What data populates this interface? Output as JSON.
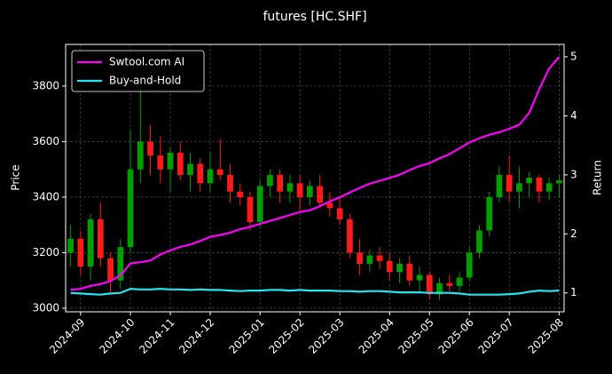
{
  "chart_data": {
    "type": "candlestick",
    "title": "futures [HC.SHF]",
    "ylabel": "Price",
    "y2label": "Return",
    "categories": [
      null,
      "2024-09",
      null,
      null,
      null,
      null,
      "2024-10",
      null,
      null,
      null,
      "2024-11",
      null,
      null,
      null,
      "2024-12",
      null,
      null,
      null,
      null,
      "2025-01",
      null,
      null,
      null,
      "2025-02",
      null,
      null,
      null,
      "2025-03",
      null,
      null,
      null,
      null,
      "2025-04",
      null,
      null,
      null,
      "2025-05",
      null,
      null,
      null,
      "2025-06",
      null,
      null,
      null,
      "2025-07",
      null,
      null,
      null,
      null,
      "2025-08"
    ],
    "open": [
      3200,
      3250,
      3150,
      3320,
      3180,
      3100,
      3220,
      3500,
      3600,
      3550,
      3500,
      3560,
      3480,
      3520,
      3450,
      3500,
      3480,
      3420,
      3400,
      3310,
      3440,
      3480,
      3420,
      3450,
      3400,
      3440,
      3380,
      3360,
      3320,
      3200,
      3160,
      3190,
      3170,
      3130,
      3160,
      3100,
      3120,
      3050,
      3090,
      3080,
      3110,
      3200,
      3280,
      3400,
      3480,
      3420,
      3450,
      3470,
      3420,
      3450
    ],
    "high": [
      3300,
      3280,
      3340,
      3380,
      3200,
      3250,
      3640,
      3800,
      3660,
      3620,
      3580,
      3600,
      3560,
      3540,
      3560,
      3610,
      3520,
      3450,
      3420,
      3460,
      3500,
      3500,
      3480,
      3480,
      3460,
      3480,
      3420,
      3400,
      3340,
      3250,
      3210,
      3220,
      3200,
      3180,
      3190,
      3150,
      3130,
      3110,
      3120,
      3130,
      3220,
      3300,
      3420,
      3510,
      3550,
      3510,
      3490,
      3480,
      3470,
      3480
    ],
    "low": [
      3150,
      3120,
      3100,
      3150,
      3050,
      3070,
      3200,
      3450,
      3480,
      3450,
      3420,
      3460,
      3420,
      3420,
      3420,
      3460,
      3380,
      3370,
      3280,
      3290,
      3400,
      3380,
      3380,
      3350,
      3370,
      3360,
      3330,
      3300,
      3180,
      3120,
      3130,
      3140,
      3100,
      3090,
      3080,
      3060,
      3030,
      3030,
      3060,
      3060,
      3100,
      3180,
      3260,
      3380,
      3380,
      3360,
      3400,
      3380,
      3390,
      3400
    ],
    "close": [
      3250,
      3150,
      3320,
      3180,
      3100,
      3220,
      3500,
      3600,
      3550,
      3500,
      3560,
      3480,
      3520,
      3450,
      3500,
      3480,
      3420,
      3400,
      3310,
      3440,
      3480,
      3420,
      3450,
      3400,
      3440,
      3380,
      3360,
      3320,
      3200,
      3160,
      3190,
      3170,
      3130,
      3160,
      3100,
      3120,
      3050,
      3090,
      3080,
      3110,
      3200,
      3280,
      3400,
      3480,
      3420,
      3450,
      3470,
      3420,
      3450,
      3460
    ],
    "up_color": "#00a000",
    "down_color": "#ff1a1a",
    "series": [
      {
        "name": "Swtool.com AI",
        "color": "#ff00ff",
        "axis": "y2",
        "values": [
          1.05,
          1.07,
          1.12,
          1.15,
          1.2,
          1.3,
          1.5,
          1.52,
          1.55,
          1.65,
          1.72,
          1.78,
          1.82,
          1.88,
          1.95,
          1.98,
          2.02,
          2.08,
          2.12,
          2.17,
          2.22,
          2.27,
          2.32,
          2.37,
          2.4,
          2.47,
          2.55,
          2.62,
          2.7,
          2.78,
          2.85,
          2.9,
          2.95,
          3.0,
          3.08,
          3.15,
          3.2,
          3.28,
          3.35,
          3.45,
          3.55,
          3.62,
          3.68,
          3.72,
          3.78,
          3.85,
          4.05,
          4.45,
          4.8,
          5.0
        ]
      },
      {
        "name": "Buy-and-Hold",
        "color": "#22e5f0",
        "axis": "y2",
        "values": [
          1.0,
          0.99,
          0.98,
          0.97,
          0.99,
          1.0,
          1.07,
          1.06,
          1.06,
          1.07,
          1.06,
          1.06,
          1.05,
          1.06,
          1.05,
          1.05,
          1.04,
          1.03,
          1.04,
          1.04,
          1.05,
          1.05,
          1.04,
          1.05,
          1.04,
          1.04,
          1.04,
          1.03,
          1.03,
          1.02,
          1.03,
          1.03,
          1.02,
          1.01,
          1.01,
          1.01,
          1.0,
          1.0,
          1.0,
          0.99,
          0.97,
          0.97,
          0.97,
          0.97,
          0.98,
          0.99,
          1.02,
          1.04,
          1.03,
          1.04
        ]
      }
    ],
    "ylim": [
      2987,
      3950
    ],
    "yticks": [
      3000,
      3200,
      3400,
      3600,
      3800
    ],
    "y2lim": [
      0.68,
      5.21
    ],
    "y2ticks": [
      1,
      2,
      3,
      4,
      5
    ],
    "grid": true,
    "legend": "upper left"
  }
}
